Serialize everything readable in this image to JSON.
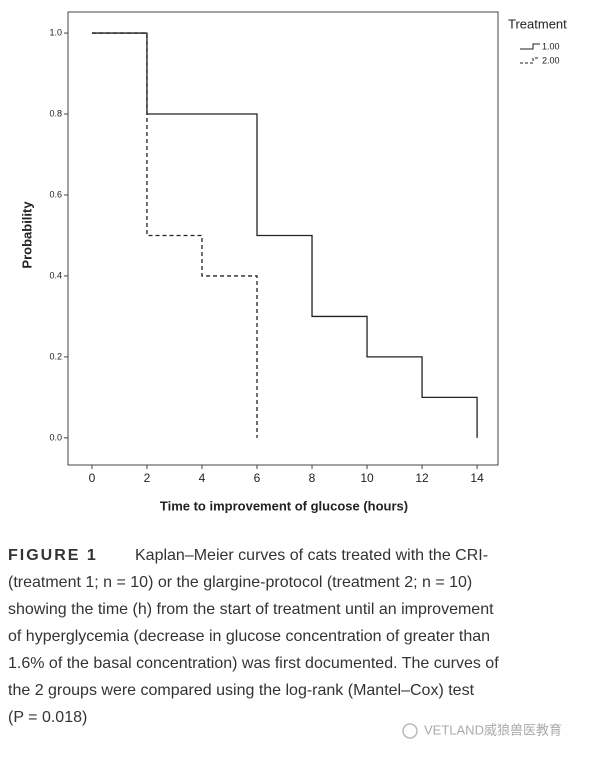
{
  "chart_data": {
    "type": "step",
    "xlabel": "Time to improvement of glucose (hours)",
    "ylabel": "Probability",
    "legend_title": "Treatment",
    "legend_position": "outside-top-right",
    "xlim": [
      -0.87,
      14.76
    ],
    "xticks": [
      0,
      2,
      4,
      6,
      8,
      10,
      12,
      14
    ],
    "ylim": [
      -0.067,
      1.052
    ],
    "yticks": [
      {
        "value": 0,
        "label": "0.0"
      },
      0.2,
      0.4,
      0.6,
      0.8,
      {
        "value": 1,
        "label": "1.0"
      }
    ],
    "series": [
      {
        "name": "1.00",
        "color": "#222222",
        "line_style": "solid",
        "x": [
          0,
          2,
          6,
          8,
          10,
          12,
          14
        ],
        "values": [
          1,
          0.8,
          0.5,
          0.3,
          0.2,
          0.1,
          0
        ]
      },
      {
        "name": "2.00",
        "color": "#222222",
        "line_style": "dashed",
        "x": [
          0,
          2,
          4,
          6
        ],
        "values": [
          1,
          0.5,
          0.4,
          0
        ]
      }
    ]
  },
  "caption": {
    "label": "FIGURE 1",
    "lines": [
      "Kaplan–Meier curves of cats treated with the CRI-",
      "(treatment 1; n = 10) or the glargine-protocol (treatment 2; n = 10)",
      "showing the time (h) from the start of treatment until an improvement",
      "of hyperglycemia (decrease in glucose concentration of greater than",
      "1.6% of the basal concentration) was first documented. The curves of",
      "the 2 groups were compared using the log-rank (Mantel–Cox) test",
      "(P = 0.018)"
    ]
  },
  "watermark": "VETLAND威狼兽医教育"
}
